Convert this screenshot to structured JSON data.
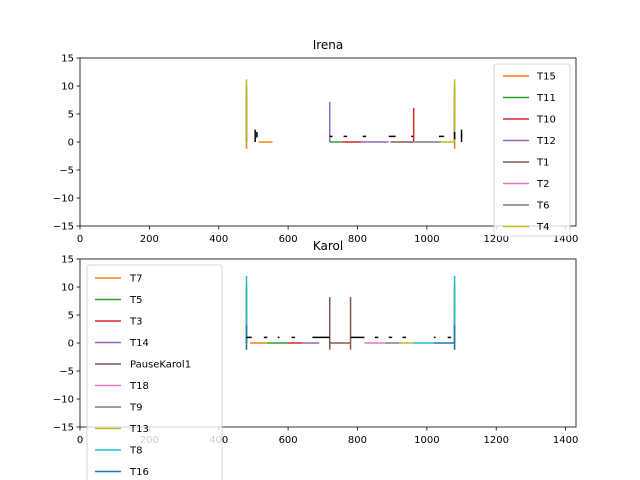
{
  "chart_data": [
    {
      "type": "line",
      "title": "Irena",
      "xlim": [
        0,
        1430
      ],
      "ylim": [
        -15,
        15
      ],
      "xticks": [
        0,
        200,
        400,
        600,
        800,
        1000,
        1200,
        1400
      ],
      "yticks": [
        -15,
        -10,
        -5,
        0,
        5,
        10,
        15
      ],
      "legend_loc": "upper-right",
      "series": [
        {
          "name": "T15",
          "color": "#ff7f0e",
          "segments": [
            [
              480,
              0,
              480,
              -1.2
            ],
            [
              480,
              0,
              480,
              4.2
            ],
            [
              515,
              0,
              555,
              0
            ],
            [
              1080,
              0,
              1080,
              -1.2
            ],
            [
              1080,
              0,
              1080,
              4.2
            ]
          ]
        },
        {
          "name": "T11",
          "color": "#2ca02c",
          "segments": [
            [
              480,
              0,
              480,
              5.2
            ],
            [
              720,
              0,
              755,
              0
            ],
            [
              1080,
              0,
              1080,
              5.2
            ]
          ]
        },
        {
          "name": "T10",
          "color": "#d62728",
          "segments": [
            [
              480,
              0,
              480,
              8
            ],
            [
              755,
              0,
              810,
              0
            ],
            [
              962,
              0,
              962,
              6.1
            ],
            [
              1080,
              0,
              1080,
              8
            ]
          ]
        },
        {
          "name": "T12",
          "color": "#9467bd",
          "segments": [
            [
              480,
              0,
              480,
              8.5
            ],
            [
              720,
              0,
              720,
              7.2
            ],
            [
              810,
              0,
              890,
              0
            ],
            [
              1080,
              0,
              1080,
              8.5
            ]
          ]
        },
        {
          "name": "T1",
          "color": "#8c564b",
          "segments": [
            [
              895,
              0,
              960,
              0
            ]
          ]
        },
        {
          "name": "T2",
          "color": "#e377c2",
          "segments": [
            [
              480,
              0,
              480,
              9.8
            ],
            [
              1080,
              0,
              1080,
              9.8
            ]
          ]
        },
        {
          "name": "T6",
          "color": "#7f7f7f",
          "segments": [
            [
              960,
              0,
              1040,
              0
            ],
            [
              480,
              0,
              480,
              10.2
            ],
            [
              1080,
              0,
              1080,
              10.2
            ]
          ]
        },
        {
          "name": "T4",
          "color": "#bcbd22",
          "segments": [
            [
              1040,
              0,
              1080,
              0
            ],
            [
              480,
              0,
              480,
              11.2
            ],
            [
              1080,
              0,
              1080,
              11.2
            ]
          ]
        }
      ],
      "markers": {
        "color": "#000000",
        "segments": [
          [
            505,
            0,
            505,
            2.2
          ],
          [
            510,
            0.8,
            510,
            1.8
          ],
          [
            720,
            1,
            728,
            1
          ],
          [
            760,
            1,
            770,
            1
          ],
          [
            815,
            1,
            825,
            1
          ],
          [
            890,
            1,
            910,
            1
          ],
          [
            955,
            1,
            960,
            1
          ],
          [
            1035,
            1,
            1050,
            1
          ],
          [
            1080,
            0.5,
            1080,
            1.8
          ],
          [
            1100,
            0,
            1100,
            2.2
          ]
        ]
      }
    },
    {
      "type": "line",
      "title": "Karol",
      "xlim": [
        0,
        1430
      ],
      "ylim": [
        -15,
        15
      ],
      "xticks": [
        0,
        200,
        400,
        600,
        800,
        1000,
        1200,
        1400
      ],
      "yticks": [
        -15,
        -10,
        -5,
        0,
        5,
        10,
        15
      ],
      "legend_loc": "upper-left",
      "series": [
        {
          "name": "T7",
          "color": "#ff7f0e",
          "segments": [
            [
              480,
              0,
              480,
              -1.2
            ],
            [
              490,
              0,
              540,
              0
            ],
            [
              1080,
              0,
              1080,
              -1.2
            ]
          ]
        },
        {
          "name": "T5",
          "color": "#2ca02c",
          "segments": [
            [
              480,
              0,
              480,
              4.5
            ],
            [
              540,
              0,
              600,
              0
            ],
            [
              1080,
              0,
              1080,
              4.5
            ]
          ]
        },
        {
          "name": "T3",
          "color": "#d62728",
          "segments": [
            [
              480,
              0,
              480,
              5.5
            ],
            [
              600,
              0,
              640,
              0
            ],
            [
              1080,
              0,
              1080,
              5.5
            ]
          ]
        },
        {
          "name": "T14",
          "color": "#9467bd",
          "segments": [
            [
              640,
              0,
              690,
              0
            ],
            [
              480,
              0,
              480,
              6.5
            ],
            [
              1080,
              0,
              1080,
              6.5
            ]
          ]
        },
        {
          "name": "PauseKarol1",
          "color": "#8c564b",
          "segments": [
            [
              720,
              -1.2,
              720,
              8.2
            ],
            [
              720,
              0,
              780,
              0
            ],
            [
              780,
              -1.2,
              780,
              8.2
            ]
          ]
        },
        {
          "name": "T18",
          "color": "#e377c2",
          "segments": [
            [
              820,
              0,
              880,
              0
            ],
            [
              480,
              0,
              480,
              9.5
            ],
            [
              1080,
              0,
              1080,
              9.5
            ]
          ]
        },
        {
          "name": "T9",
          "color": "#7f7f7f",
          "segments": [
            [
              880,
              0,
              920,
              0
            ],
            [
              480,
              0,
              480,
              10
            ],
            [
              1080,
              0,
              1080,
              10
            ]
          ]
        },
        {
          "name": "T13",
          "color": "#bcbd22",
          "segments": [
            [
              920,
              0,
              960,
              0
            ],
            [
              480,
              0,
              480,
              10.8
            ],
            [
              1080,
              0,
              1080,
              10.8
            ]
          ]
        },
        {
          "name": "T8",
          "color": "#17becf",
          "segments": [
            [
              960,
              0,
              1020,
              0
            ],
            [
              480,
              0,
              480,
              12
            ],
            [
              1080,
              0,
              1080,
              12
            ]
          ]
        },
        {
          "name": "T16",
          "color": "#1f77b4",
          "segments": [
            [
              1020,
              0,
              1080,
              0
            ],
            [
              480,
              -1.2,
              480,
              3.2
            ],
            [
              1080,
              -1.2,
              1080,
              3.2
            ]
          ]
        }
      ],
      "markers": {
        "color": "#000000",
        "segments": [
          [
            480,
            1,
            495,
            1
          ],
          [
            530,
            1,
            540,
            1
          ],
          [
            570,
            1,
            575,
            1
          ],
          [
            610,
            1,
            620,
            1
          ],
          [
            670,
            1,
            720,
            1
          ],
          [
            780,
            1,
            820,
            1
          ],
          [
            850,
            1,
            860,
            1
          ],
          [
            890,
            1,
            900,
            1
          ],
          [
            930,
            1,
            940,
            1
          ],
          [
            1020,
            1,
            1025,
            1
          ],
          [
            1060,
            1,
            1070,
            1
          ]
        ]
      }
    }
  ]
}
